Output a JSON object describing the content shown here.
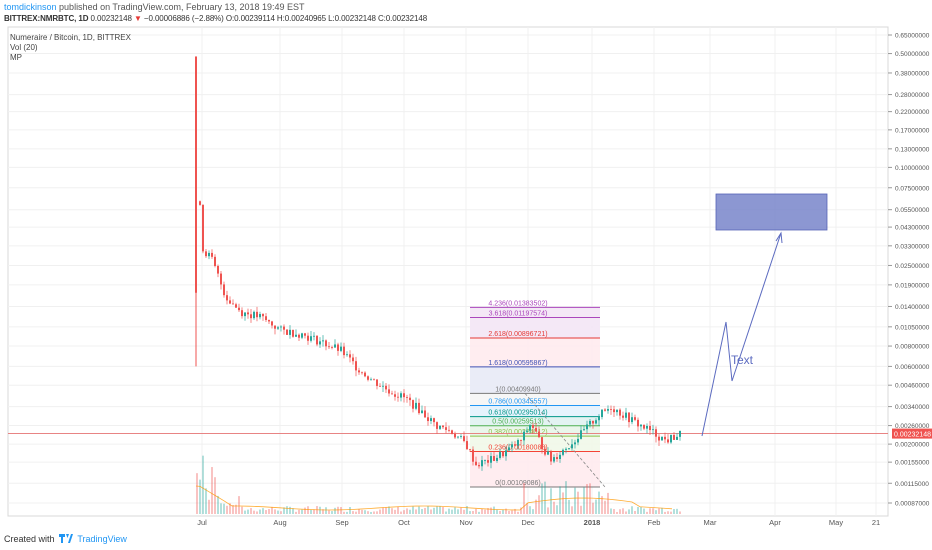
{
  "header": {
    "author": "tomdickinson",
    "published": "published on TradingView.com, February 13, 2018 19:49 EST",
    "symbol": "BITTREX:NMRBTC, 1D",
    "price": "0.00232148",
    "change": "−0.00006886 (−2.88%)",
    "ohlc": "O:0.00239114 H:0.00240965 L:0.00232148 C:0.00232148"
  },
  "legend": {
    "title": "Numeraire / Bitcoin, 1D, BITTREX",
    "vol": "Vol (20)",
    "mp": "MP"
  },
  "footer": {
    "created": "Created with",
    "brand": "TradingView"
  },
  "colors": {
    "up": "#26a69a",
    "down": "#ef5350",
    "box": "#7986cb",
    "arrow": "#5c6bc0",
    "price_line": "#e57373"
  },
  "chart_data": {
    "type": "candlestick",
    "y_scale": "log",
    "y_tick_labels": [
      "0.65000000",
      "0.50000000",
      "0.38000000",
      "0.28000000",
      "0.22000000",
      "0.17000000",
      "0.13000000",
      "0.10000000",
      "0.07500000",
      "0.05500000",
      "0.04300000",
      "0.03300000",
      "0.02500000",
      "0.01900000",
      "0.01400000",
      "0.01050000",
      "0.00800000",
      "0.00600000",
      "0.00460000",
      "0.00340000",
      "0.00260000",
      "0.00200000",
      "0.00155000",
      "0.00115000",
      "0.00087000"
    ],
    "x_tick_labels": [
      "Jul",
      "Aug",
      "Sep",
      "Oct",
      "Nov",
      "Dec",
      "2018",
      "Feb",
      "Mar",
      "Apr",
      "May",
      "21"
    ],
    "current_price_label": "0.00232148",
    "fib_levels": [
      {
        "label": "4.236(0.01383502)",
        "value": 0.01383502,
        "color": "#ab47bc"
      },
      {
        "label": "3.618(0.01197574)",
        "value": 0.01197574,
        "color": "#ab47bc"
      },
      {
        "label": "2.618(0.00896721)",
        "value": 0.00896721,
        "color": "#e53935"
      },
      {
        "label": "1.618(0.00595867)",
        "value": 0.00595867,
        "color": "#3f51b5"
      },
      {
        "label": "1(0.00409940)",
        "value": 0.0040994,
        "color": "#787878"
      },
      {
        "label": "0.786(0.00345557)",
        "value": 0.00345557,
        "color": "#2196f3"
      },
      {
        "label": "0.618(0.00295014)",
        "value": 0.00295014,
        "color": "#009688"
      },
      {
        "label": "0.5(0.00259513)",
        "value": 0.00259513,
        "color": "#4caf50"
      },
      {
        "label": "0.382(0.00224012)",
        "value": 0.00224012,
        "color": "#8bc34a"
      },
      {
        "label": "0.236(0.00180088)",
        "value": 0.00180088,
        "color": "#f44336"
      },
      {
        "label": "0(0.00109086)",
        "value": 0.00109086,
        "color": "#787878"
      }
    ],
    "annotation_text": "Text"
  }
}
